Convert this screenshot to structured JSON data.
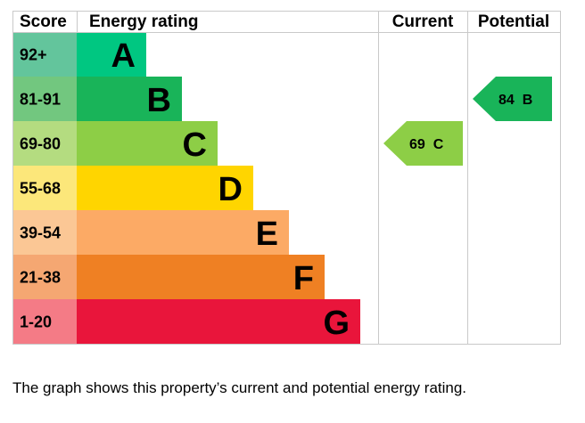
{
  "chart_data": {
    "type": "bar",
    "headers": {
      "score": "Score",
      "rating": "Energy rating",
      "current": "Current",
      "potential": "Potential"
    },
    "bands": [
      {
        "score": "92+",
        "letter": "A",
        "score_color": "#63c59c",
        "bar_color": "#00c781"
      },
      {
        "score": "81-91",
        "letter": "B",
        "score_color": "#72c77f",
        "bar_color": "#19b459"
      },
      {
        "score": "69-80",
        "letter": "C",
        "score_color": "#b4dc80",
        "bar_color": "#8dce46"
      },
      {
        "score": "55-68",
        "letter": "D",
        "score_color": "#fce77a",
        "bar_color": "#ffd500"
      },
      {
        "score": "39-54",
        "letter": "E",
        "score_color": "#fbc795",
        "bar_color": "#fcaa65"
      },
      {
        "score": "21-38",
        "letter": "F",
        "score_color": "#f5a772",
        "bar_color": "#ef8023"
      },
      {
        "score": "1-20",
        "letter": "G",
        "score_color": "#f47b86",
        "bar_color": "#e9153b"
      }
    ],
    "current": {
      "value": 69,
      "letter": "C",
      "label": "69  C",
      "color": "#8dce46"
    },
    "potential": {
      "value": 84,
      "letter": "B",
      "label": "84  B",
      "color": "#19b459"
    }
  },
  "caption": "The graph shows this property’s current and potential energy rating."
}
